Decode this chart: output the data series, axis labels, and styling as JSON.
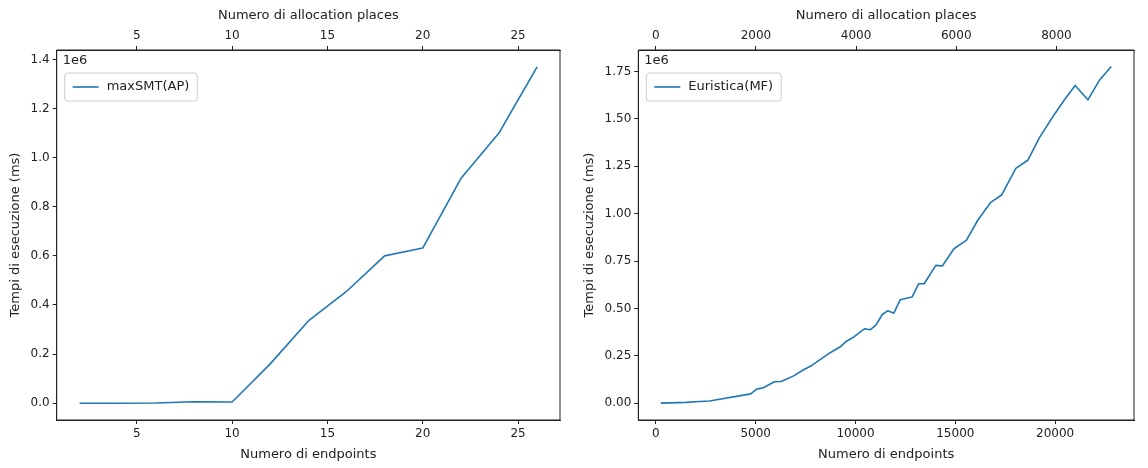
{
  "chart_data": [
    {
      "type": "line",
      "xlabel": "Numero di endpoints",
      "x2label": "Numero di allocation places",
      "ylabel": "Tempi di esecuzione (ms)",
      "annotations": [
        "1e6"
      ],
      "legend": "top left",
      "grid": false,
      "x": [
        2,
        4,
        6,
        8,
        10,
        12,
        14,
        16,
        18,
        20,
        22,
        24,
        26
      ],
      "series": [
        {
          "name": "maxSMT(AP)",
          "color": "#1f77b4",
          "values": [
            0,
            0,
            0.001,
            0.006,
            0.005,
            0.16,
            0.335,
            0.455,
            0.6,
            0.632,
            0.915,
            1.1,
            1.37
          ]
        }
      ],
      "xlim": [
        0.8,
        27.2
      ],
      "xticks": [
        5,
        10,
        15,
        20,
        25
      ],
      "x2lim": [
        0.8,
        27.2
      ],
      "x2ticks": [
        5,
        10,
        15,
        20,
        25
      ],
      "ylim": [
        -0.0685,
        1.4385
      ],
      "yticks": [
        {
          "value": 0,
          "label": "0.0"
        },
        {
          "value": 0.2,
          "label": "0.2"
        },
        {
          "value": 0.4,
          "label": "0.4"
        },
        {
          "value": 0.6,
          "label": "0.6"
        },
        {
          "value": 0.8,
          "label": "0.8"
        },
        {
          "value": 1,
          "label": "1.0"
        },
        {
          "value": 1.2,
          "label": "1.2"
        },
        {
          "value": 1.4,
          "label": "1.4"
        }
      ]
    },
    {
      "type": "line",
      "xlabel": "Numero di endpoints",
      "x2label": "Numero di allocation places",
      "ylabel": "Tempi di esecuzione (ms)",
      "annotations": [
        "1e6"
      ],
      "legend": "top left",
      "grid": false,
      "x": [
        250,
        1500,
        2200,
        2680,
        4750,
        5050,
        5380,
        5940,
        6270,
        6900,
        7400,
        7810,
        8640,
        8920,
        9220,
        9550,
        9850,
        10460,
        10740,
        11040,
        11340,
        11620,
        11920,
        12240,
        12830,
        13160,
        13440,
        14020,
        14350,
        14930,
        15550,
        16140,
        16760,
        17330,
        18030,
        18630,
        19220,
        19950,
        20460,
        21000,
        21640,
        22230,
        22810
      ],
      "series": [
        {
          "name": "Euristica(MF)",
          "color": "#1f77b4",
          "values": [
            0,
            0.004,
            0.009,
            0.011,
            0.049,
            0.074,
            0.081,
            0.113,
            0.114,
            0.144,
            0.176,
            0.199,
            0.26,
            0.278,
            0.296,
            0.327,
            0.345,
            0.393,
            0.387,
            0.414,
            0.468,
            0.488,
            0.475,
            0.546,
            0.56,
            0.63,
            0.63,
            0.727,
            0.724,
            0.815,
            0.859,
            0.968,
            1.058,
            1.1,
            1.239,
            1.282,
            1.403,
            1.522,
            1.6,
            1.677,
            1.601,
            1.706,
            1.777
          ]
        }
      ],
      "xlim": [
        -880,
        23950
      ],
      "xticks": [
        0,
        5000,
        10000,
        15000,
        20000
      ],
      "x2lim": [
        -350,
        9550
      ],
      "x2ticks": [
        0,
        2000,
        4000,
        6000,
        8000
      ],
      "ylim": [
        -0.089,
        1.864
      ],
      "yticks": [
        {
          "value": 0,
          "label": "0.00"
        },
        {
          "value": 0.25,
          "label": "0.25"
        },
        {
          "value": 0.5,
          "label": "0.50"
        },
        {
          "value": 0.75,
          "label": "0.75"
        },
        {
          "value": 1,
          "label": "1.00"
        },
        {
          "value": 1.25,
          "label": "1.25"
        },
        {
          "value": 1.5,
          "label": "1.50"
        },
        {
          "value": 1.75,
          "label": "1.75"
        }
      ]
    }
  ]
}
